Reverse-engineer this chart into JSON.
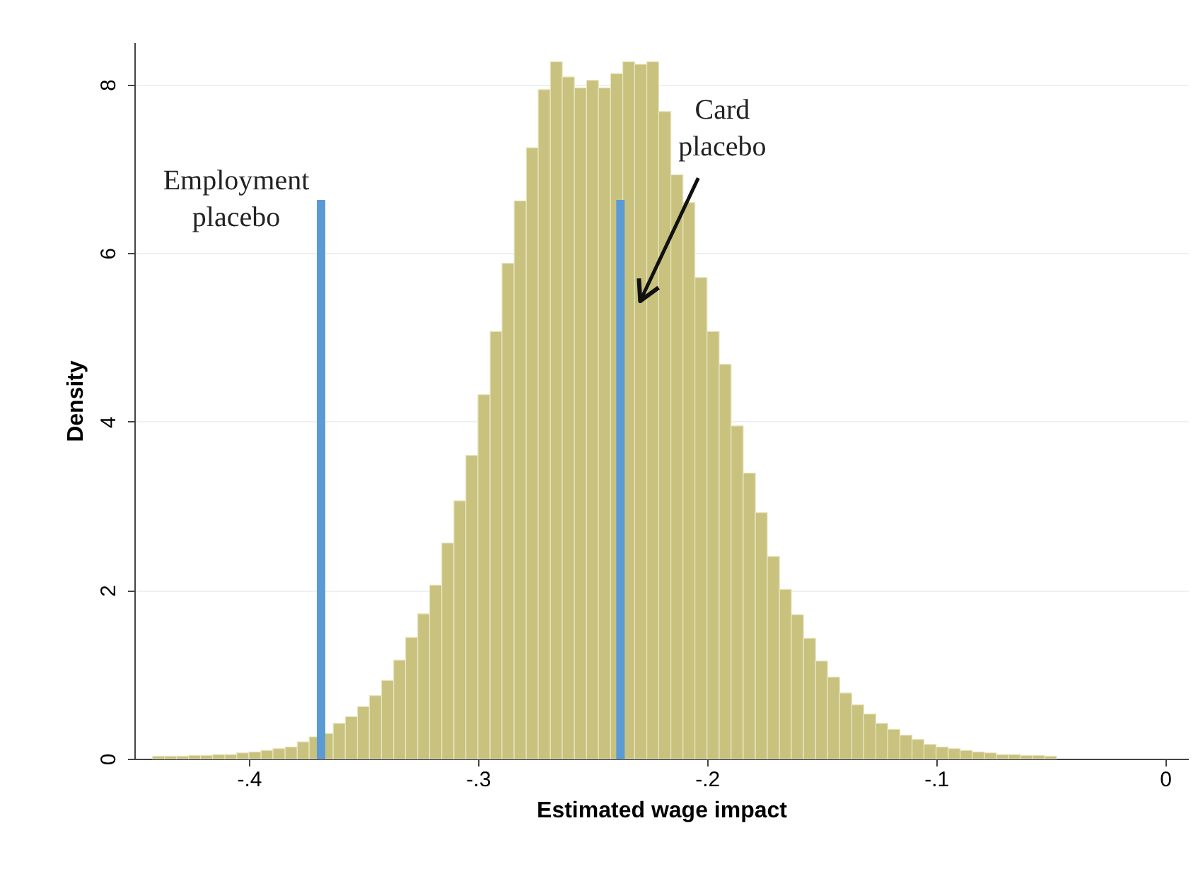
{
  "chart_data": {
    "type": "histogram",
    "xlabel": "Estimated wage impact",
    "ylabel": "Density",
    "bins": [
      -0.4421,
      -0.4368,
      -0.4316,
      -0.4263,
      -0.4211,
      -0.4158,
      -0.4105,
      -0.4053,
      -0.4,
      -0.3947,
      -0.3895,
      -0.3842,
      -0.3789,
      -0.3737,
      -0.3684,
      -0.3632,
      -0.3579,
      -0.3526,
      -0.3474,
      -0.3421,
      -0.3368,
      -0.3316,
      -0.3263,
      -0.3211,
      -0.3158,
      -0.3105,
      -0.3053,
      -0.3,
      -0.2947,
      -0.2895,
      -0.2842,
      -0.2789,
      -0.2737,
      -0.2684,
      -0.2632,
      -0.2579,
      -0.2526,
      -0.2474,
      -0.2421,
      -0.2368,
      -0.2316,
      -0.2263,
      -0.2211,
      -0.2158,
      -0.2105,
      -0.2053,
      -0.2,
      -0.1947,
      -0.1895,
      -0.1842,
      -0.1789,
      -0.1737,
      -0.1684,
      -0.1632,
      -0.1579,
      -0.1526,
      -0.1474,
      -0.1421,
      -0.1368,
      -0.1316,
      -0.1263,
      -0.1211,
      -0.1158,
      -0.1105,
      -0.1053,
      -0.1,
      -0.0947,
      -0.0895,
      -0.0842,
      -0.0789,
      -0.0737,
      -0.0684,
      -0.0632,
      -0.0579,
      -0.0526,
      -0.0474
    ],
    "values": [
      0.03,
      0.03,
      0.03,
      0.04,
      0.04,
      0.05,
      0.05,
      0.07,
      0.08,
      0.1,
      0.12,
      0.14,
      0.2,
      0.26,
      0.3,
      0.42,
      0.5,
      0.62,
      0.75,
      0.93,
      1.17,
      1.44,
      1.72,
      2.06,
      2.56,
      3.06,
      3.6,
      4.32,
      5.07,
      5.88,
      6.62,
      7.25,
      7.94,
      8.27,
      8.09,
      7.96,
      8.05,
      7.96,
      8.13,
      8.27,
      8.24,
      8.27,
      7.68,
      6.93,
      6.6,
      5.71,
      5.07,
      4.68,
      3.95,
      3.39,
      2.92,
      2.4,
      2.01,
      1.71,
      1.43,
      1.16,
      0.97,
      0.78,
      0.64,
      0.53,
      0.42,
      0.35,
      0.28,
      0.23,
      0.17,
      0.14,
      0.12,
      0.1,
      0.08,
      0.07,
      0.05,
      0.05,
      0.04,
      0.04,
      0.03
    ],
    "color": "#c8c27e",
    "xlim": [
      -0.45,
      0.01
    ],
    "xticks": [
      {
        "value": -0.4,
        "label": "-.4"
      },
      {
        "value": -0.3,
        "label": "-.3"
      },
      {
        "value": -0.2,
        "label": "-.2"
      },
      {
        "value": -0.1,
        "label": "-.1"
      },
      0
    ],
    "ylim": [
      0,
      8.5
    ],
    "yticks": [
      0,
      2,
      4,
      6,
      8
    ],
    "grid": "y",
    "ref_lines": [
      {
        "axis": "x",
        "value": -0.3685,
        "label": "Employment placebo",
        "color": "#5b9bd5"
      },
      {
        "axis": "x",
        "value": -0.2378,
        "label": "Card placebo",
        "color": "#5b9bd5"
      }
    ]
  }
}
